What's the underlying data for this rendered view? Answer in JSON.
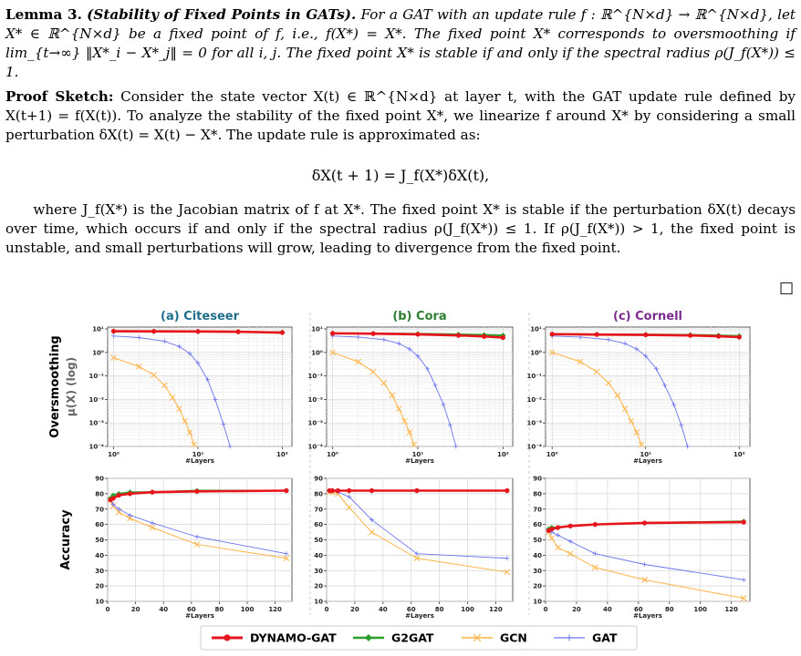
{
  "lemma": {
    "label": "Lemma 3.",
    "name": "(Stability of Fixed Points in GATs).",
    "body": "For a GAT with an update rule f : ℝ^{N×d} → ℝ^{N×d}, let X* ∈ ℝ^{N×d} be a fixed point of f, i.e., f(X*) = X*. The fixed point X* corresponds to oversmoothing if lim_{t→∞} ‖X*_i − X*_j‖ = 0 for all i, j. The fixed point X* is stable if and only if the spectral radius ρ(J_f(X*)) ≤ 1."
  },
  "proof": {
    "label": "Proof Sketch:",
    "body": "Consider the state vector X(t) ∈ ℝ^{N×d} at layer t, with the GAT update rule defined by X(t+1) = f(X(t)). To analyze the stability of the fixed point X*, we linearize f around X* by considering a small perturbation δX(t) = X(t) − X*. The update rule is approximated as:",
    "equation": "δX(t + 1) = J_f(X*)δX(t),",
    "after": "where J_f(X*) is the Jacobian matrix of f at X*. The fixed point X* is stable if the perturbation δX(t) decays over time, which occurs if and only if the spectral radius ρ(J_f(X*)) ≤ 1. If ρ(J_f(X*)) > 1, the fixed point is unstable, and small perturbations will grow, leading to divergence from the fixed point.",
    "qed": "□"
  },
  "figure": {
    "row_labels": {
      "top_main": "Oversmoothing",
      "top_sub": "μ(X) (log)",
      "bottom": "Accuracy"
    },
    "legend": [
      "DYNAMO-GAT",
      "G2GAT",
      "GCN",
      "GAT"
    ],
    "colors": {
      "DYNAMO-GAT": "#e8141c",
      "G2GAT": "#2ca02c",
      "GCN": "#ffb347",
      "GAT": "#6b74f0"
    },
    "panel_title_colors": [
      "#1f6f8b",
      "#2e7d32",
      "#7b2d8e"
    ]
  },
  "chart_data": [
    {
      "type": "line",
      "title": "(a) Citeseer",
      "xlabel": "#Layers",
      "ylabel": "",
      "log_x": true,
      "log_y": true,
      "xlim": [
        0.85,
        130
      ],
      "ylim": [
        0.0001,
        12
      ],
      "xticks": [
        {
          "v": 1,
          "l": "10⁰"
        },
        {
          "v": 10,
          "l": "10¹"
        },
        {
          "v": 100,
          "l": "10²"
        }
      ],
      "yticks": [
        {
          "v": 10,
          "l": "10¹"
        },
        {
          "v": 1,
          "l": "10⁰"
        },
        {
          "v": 0.1,
          "l": "10⁻¹"
        },
        {
          "v": 0.01,
          "l": "10⁻²"
        },
        {
          "v": 0.001,
          "l": "10⁻³"
        },
        {
          "v": 0.0001,
          "l": "10⁻⁴"
        }
      ],
      "series": [
        {
          "name": "GCN",
          "x": [
            1,
            2,
            3,
            4,
            5,
            6,
            7,
            8,
            9
          ],
          "y": [
            0.6,
            0.25,
            0.11,
            0.04,
            0.012,
            0.004,
            0.0012,
            0.0004,
            0.00012
          ]
        },
        {
          "name": "GAT",
          "x": [
            1,
            2,
            4,
            6,
            8,
            10,
            13,
            16,
            20,
            24
          ],
          "y": [
            5,
            4.3,
            3,
            1.8,
            0.9,
            0.35,
            0.07,
            0.01,
            0.0009,
            0.0001
          ]
        },
        {
          "name": "G2GAT",
          "x": [
            1,
            3,
            10,
            30,
            100
          ],
          "y": [
            8.0,
            7.9,
            7.8,
            7.6,
            7.2
          ]
        },
        {
          "name": "DYNAMO-GAT",
          "x": [
            1,
            3,
            10,
            30,
            100
          ],
          "y": [
            8.0,
            7.9,
            7.8,
            7.6,
            7.0
          ]
        }
      ]
    },
    {
      "type": "line",
      "title": "(b) Cora",
      "xlabel": "#Layers",
      "ylabel": "",
      "log_x": true,
      "log_y": true,
      "xlim": [
        0.85,
        130
      ],
      "ylim": [
        0.0001,
        12
      ],
      "xticks": [
        {
          "v": 1,
          "l": "10⁰"
        },
        {
          "v": 10,
          "l": "10¹"
        },
        {
          "v": 100,
          "l": "10²"
        }
      ],
      "yticks": [
        {
          "v": 10,
          "l": "10¹"
        },
        {
          "v": 1,
          "l": "10⁰"
        },
        {
          "v": 0.1,
          "l": "10⁻¹"
        },
        {
          "v": 0.01,
          "l": "10⁻²"
        },
        {
          "v": 0.001,
          "l": "10⁻³"
        },
        {
          "v": 0.0001,
          "l": "10⁻⁴"
        }
      ],
      "series": [
        {
          "name": "GCN",
          "x": [
            1,
            2,
            3,
            4,
            5,
            6,
            7,
            8,
            9
          ],
          "y": [
            1.0,
            0.4,
            0.15,
            0.05,
            0.015,
            0.004,
            0.0012,
            0.0004,
            0.00012
          ]
        },
        {
          "name": "GAT",
          "x": [
            1,
            2,
            4,
            6,
            8,
            10,
            13,
            16,
            20,
            24,
            28
          ],
          "y": [
            5,
            4.5,
            3.5,
            2.4,
            1.4,
            0.7,
            0.2,
            0.04,
            0.006,
            0.0008,
            0.0001
          ]
        },
        {
          "name": "G2GAT",
          "x": [
            1,
            3,
            10,
            30,
            60,
            100
          ],
          "y": [
            6.5,
            6.4,
            6.2,
            5.9,
            5.6,
            5.3
          ]
        },
        {
          "name": "DYNAMO-GAT",
          "x": [
            1,
            3,
            10,
            30,
            60,
            100
          ],
          "y": [
            6.5,
            6.3,
            5.9,
            5.3,
            4.8,
            4.3
          ]
        }
      ]
    },
    {
      "type": "line",
      "title": "(c) Cornell",
      "xlabel": "#Layers",
      "ylabel": "",
      "log_x": true,
      "log_y": true,
      "xlim": [
        0.85,
        130
      ],
      "ylim": [
        0.0001,
        12
      ],
      "xticks": [
        {
          "v": 1,
          "l": "10⁰"
        },
        {
          "v": 10,
          "l": "10¹"
        },
        {
          "v": 100,
          "l": "10²"
        }
      ],
      "yticks": [
        {
          "v": 10,
          "l": "10¹"
        },
        {
          "v": 1,
          "l": "10⁰"
        },
        {
          "v": 0.1,
          "l": "10⁻¹"
        },
        {
          "v": 0.01,
          "l": "10⁻²"
        },
        {
          "v": 0.001,
          "l": "10⁻³"
        },
        {
          "v": 0.0001,
          "l": "10⁻⁴"
        }
      ],
      "series": [
        {
          "name": "GCN",
          "x": [
            1,
            2,
            3,
            4,
            5,
            6,
            7,
            8,
            9
          ],
          "y": [
            1.0,
            0.4,
            0.15,
            0.05,
            0.015,
            0.004,
            0.0012,
            0.0004,
            0.00012
          ]
        },
        {
          "name": "GAT",
          "x": [
            1,
            2,
            4,
            6,
            8,
            10,
            13,
            16,
            20,
            24,
            28
          ],
          "y": [
            5,
            4.5,
            3.5,
            2.4,
            1.4,
            0.7,
            0.2,
            0.04,
            0.006,
            0.0008,
            0.0001
          ]
        },
        {
          "name": "G2GAT",
          "x": [
            1,
            3,
            10,
            30,
            60,
            100
          ],
          "y": [
            6.0,
            5.9,
            5.8,
            5.6,
            5.3,
            5.0
          ]
        },
        {
          "name": "DYNAMO-GAT",
          "x": [
            1,
            3,
            10,
            30,
            60,
            100
          ],
          "y": [
            6.0,
            5.8,
            5.6,
            5.3,
            4.9,
            4.5
          ]
        }
      ]
    },
    {
      "type": "line",
      "title": "",
      "xlabel": "#Layers",
      "ylabel": "Accuracy",
      "log_x": false,
      "log_y": false,
      "xlim": [
        0,
        132
      ],
      "ylim": [
        10,
        90
      ],
      "xticks": [
        {
          "v": 0,
          "l": "0"
        },
        {
          "v": 20,
          "l": "20"
        },
        {
          "v": 40,
          "l": "40"
        },
        {
          "v": 60,
          "l": "60"
        },
        {
          "v": 80,
          "l": "80"
        },
        {
          "v": 100,
          "l": "100"
        },
        {
          "v": 120,
          "l": "120"
        }
      ],
      "yticks": [
        {
          "v": 10,
          "l": "10"
        },
        {
          "v": 20,
          "l": "20"
        },
        {
          "v": 30,
          "l": "30"
        },
        {
          "v": 40,
          "l": "40"
        },
        {
          "v": 50,
          "l": "50"
        },
        {
          "v": 60,
          "l": "60"
        },
        {
          "v": 70,
          "l": "70"
        },
        {
          "v": 80,
          "l": "80"
        },
        {
          "v": 90,
          "l": "90"
        }
      ],
      "series": [
        {
          "name": "GCN",
          "x": [
            2,
            4,
            8,
            16,
            32,
            64,
            128
          ],
          "y": [
            76,
            72,
            68,
            64,
            58,
            47,
            38
          ]
        },
        {
          "name": "GAT",
          "x": [
            2,
            4,
            8,
            16,
            32,
            64,
            128
          ],
          "y": [
            76,
            73,
            70,
            66,
            61,
            52,
            41
          ]
        },
        {
          "name": "G2GAT",
          "x": [
            2,
            4,
            8,
            16,
            32,
            64,
            128
          ],
          "y": [
            77,
            79,
            80,
            81,
            81,
            82,
            82
          ]
        },
        {
          "name": "DYNAMO-GAT",
          "x": [
            2,
            4,
            8,
            16,
            32,
            64,
            128
          ],
          "y": [
            76,
            77,
            79,
            80,
            81,
            81.5,
            82
          ]
        }
      ]
    },
    {
      "type": "line",
      "title": "",
      "xlabel": "#Layers",
      "ylabel": "",
      "log_x": false,
      "log_y": false,
      "xlim": [
        0,
        132
      ],
      "ylim": [
        10,
        90
      ],
      "xticks": [
        {
          "v": 0,
          "l": "0"
        },
        {
          "v": 20,
          "l": "20"
        },
        {
          "v": 40,
          "l": "40"
        },
        {
          "v": 60,
          "l": "60"
        },
        {
          "v": 80,
          "l": "80"
        },
        {
          "v": 100,
          "l": "100"
        },
        {
          "v": 120,
          "l": "120"
        }
      ],
      "yticks": [
        {
          "v": 10,
          "l": "10"
        },
        {
          "v": 20,
          "l": "20"
        },
        {
          "v": 30,
          "l": "30"
        },
        {
          "v": 40,
          "l": "40"
        },
        {
          "v": 50,
          "l": "50"
        },
        {
          "v": 60,
          "l": "60"
        },
        {
          "v": 70,
          "l": "70"
        },
        {
          "v": 80,
          "l": "80"
        },
        {
          "v": 90,
          "l": "90"
        }
      ],
      "series": [
        {
          "name": "GCN",
          "x": [
            2,
            4,
            8,
            16,
            32,
            64,
            128
          ],
          "y": [
            81,
            81,
            80,
            71,
            55,
            38,
            29
          ]
        },
        {
          "name": "GAT",
          "x": [
            2,
            4,
            8,
            16,
            32,
            64,
            128
          ],
          "y": [
            82,
            82,
            81,
            78,
            63,
            41,
            38
          ]
        },
        {
          "name": "G2GAT",
          "x": [
            2,
            4,
            8,
            16,
            32,
            64,
            128
          ],
          "y": [
            82,
            82,
            82,
            82,
            82,
            82,
            82
          ]
        },
        {
          "name": "DYNAMO-GAT",
          "x": [
            2,
            4,
            8,
            16,
            32,
            64,
            128
          ],
          "y": [
            82,
            82,
            82,
            82,
            82,
            82,
            82
          ]
        }
      ]
    },
    {
      "type": "line",
      "title": "",
      "xlabel": "#Layers",
      "ylabel": "",
      "log_x": false,
      "log_y": false,
      "xlim": [
        0,
        132
      ],
      "ylim": [
        10,
        90
      ],
      "xticks": [
        {
          "v": 0,
          "l": "0"
        },
        {
          "v": 20,
          "l": "20"
        },
        {
          "v": 40,
          "l": "40"
        },
        {
          "v": 60,
          "l": "60"
        },
        {
          "v": 80,
          "l": "80"
        },
        {
          "v": 100,
          "l": "100"
        },
        {
          "v": 120,
          "l": "120"
        }
      ],
      "yticks": [
        {
          "v": 10,
          "l": "10"
        },
        {
          "v": 20,
          "l": "20"
        },
        {
          "v": 30,
          "l": "30"
        },
        {
          "v": 40,
          "l": "40"
        },
        {
          "v": 50,
          "l": "50"
        },
        {
          "v": 60,
          "l": "60"
        },
        {
          "v": 70,
          "l": "70"
        },
        {
          "v": 80,
          "l": "80"
        },
        {
          "v": 90,
          "l": "90"
        }
      ],
      "series": [
        {
          "name": "GCN",
          "x": [
            2,
            4,
            8,
            16,
            32,
            64,
            128
          ],
          "y": [
            55,
            51,
            45,
            41,
            32,
            24,
            12
          ]
        },
        {
          "name": "GAT",
          "x": [
            2,
            4,
            8,
            16,
            32,
            64,
            128
          ],
          "y": [
            56,
            55,
            53,
            49,
            41,
            34,
            24
          ]
        },
        {
          "name": "G2GAT",
          "x": [
            2,
            4,
            8,
            16,
            32,
            64,
            128
          ],
          "y": [
            57,
            58,
            58,
            59,
            60,
            61,
            62
          ]
        },
        {
          "name": "DYNAMO-GAT",
          "x": [
            2,
            4,
            8,
            16,
            32,
            64,
            128
          ],
          "y": [
            56,
            57,
            58,
            59,
            60,
            61,
            61.5
          ]
        }
      ]
    }
  ]
}
